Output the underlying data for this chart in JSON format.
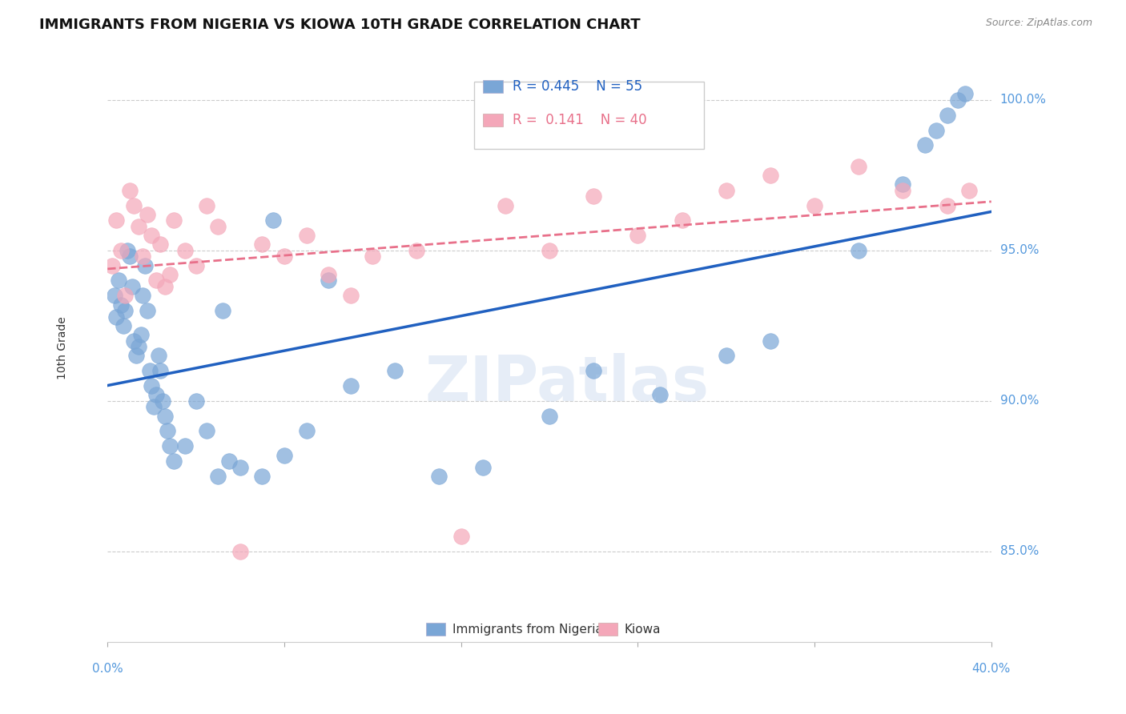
{
  "title": "IMMIGRANTS FROM NIGERIA VS KIOWA 10TH GRADE CORRELATION CHART",
  "source": "Source: ZipAtlas.com",
  "ylabel": "10th Grade",
  "x_range": [
    0.0,
    40.0
  ],
  "y_range": [
    82.0,
    101.5
  ],
  "R_nigeria": 0.445,
  "N_nigeria": 55,
  "R_kiowa": 0.141,
  "N_kiowa": 40,
  "nigeria_color": "#7aa6d6",
  "kiowa_color": "#f4a7b9",
  "nigeria_line_color": "#2060c0",
  "kiowa_line_color": "#e8708a",
  "nigeria_points_x": [
    0.3,
    0.4,
    0.5,
    0.6,
    0.7,
    0.8,
    0.9,
    1.0,
    1.1,
    1.2,
    1.3,
    1.4,
    1.5,
    1.6,
    1.7,
    1.8,
    1.9,
    2.0,
    2.1,
    2.2,
    2.3,
    2.4,
    2.5,
    2.6,
    2.7,
    2.8,
    3.0,
    3.5,
    4.0,
    4.5,
    5.0,
    5.5,
    6.0,
    7.0,
    8.0,
    9.0,
    11.0,
    13.0,
    15.0,
    17.0,
    20.0,
    22.0,
    25.0,
    28.0,
    30.0,
    34.0,
    36.0,
    37.0,
    37.5,
    38.0,
    38.5,
    5.2,
    7.5,
    10.0,
    38.8
  ],
  "nigeria_points_y": [
    93.5,
    92.8,
    94.0,
    93.2,
    92.5,
    93.0,
    95.0,
    94.8,
    93.8,
    92.0,
    91.5,
    91.8,
    92.2,
    93.5,
    94.5,
    93.0,
    91.0,
    90.5,
    89.8,
    90.2,
    91.5,
    91.0,
    90.0,
    89.5,
    89.0,
    88.5,
    88.0,
    88.5,
    90.0,
    89.0,
    87.5,
    88.0,
    87.8,
    87.5,
    88.2,
    89.0,
    90.5,
    91.0,
    87.5,
    87.8,
    89.5,
    91.0,
    90.2,
    91.5,
    92.0,
    95.0,
    97.2,
    98.5,
    99.0,
    99.5,
    100.0,
    93.0,
    96.0,
    94.0,
    100.2
  ],
  "kiowa_points_x": [
    0.2,
    0.4,
    0.6,
    0.8,
    1.0,
    1.2,
    1.4,
    1.6,
    1.8,
    2.0,
    2.2,
    2.4,
    2.6,
    2.8,
    3.0,
    3.5,
    4.0,
    4.5,
    5.0,
    6.0,
    7.0,
    8.0,
    9.0,
    10.0,
    11.0,
    12.0,
    14.0,
    16.0,
    18.0,
    20.0,
    22.0,
    24.0,
    26.0,
    28.0,
    30.0,
    32.0,
    34.0,
    36.0,
    38.0,
    39.0
  ],
  "kiowa_points_y": [
    94.5,
    96.0,
    95.0,
    93.5,
    97.0,
    96.5,
    95.8,
    94.8,
    96.2,
    95.5,
    94.0,
    95.2,
    93.8,
    94.2,
    96.0,
    95.0,
    94.5,
    96.5,
    95.8,
    85.0,
    95.2,
    94.8,
    95.5,
    94.2,
    93.5,
    94.8,
    95.0,
    85.5,
    96.5,
    95.0,
    96.8,
    95.5,
    96.0,
    97.0,
    97.5,
    96.5,
    97.8,
    97.0,
    96.5,
    97.0
  ]
}
